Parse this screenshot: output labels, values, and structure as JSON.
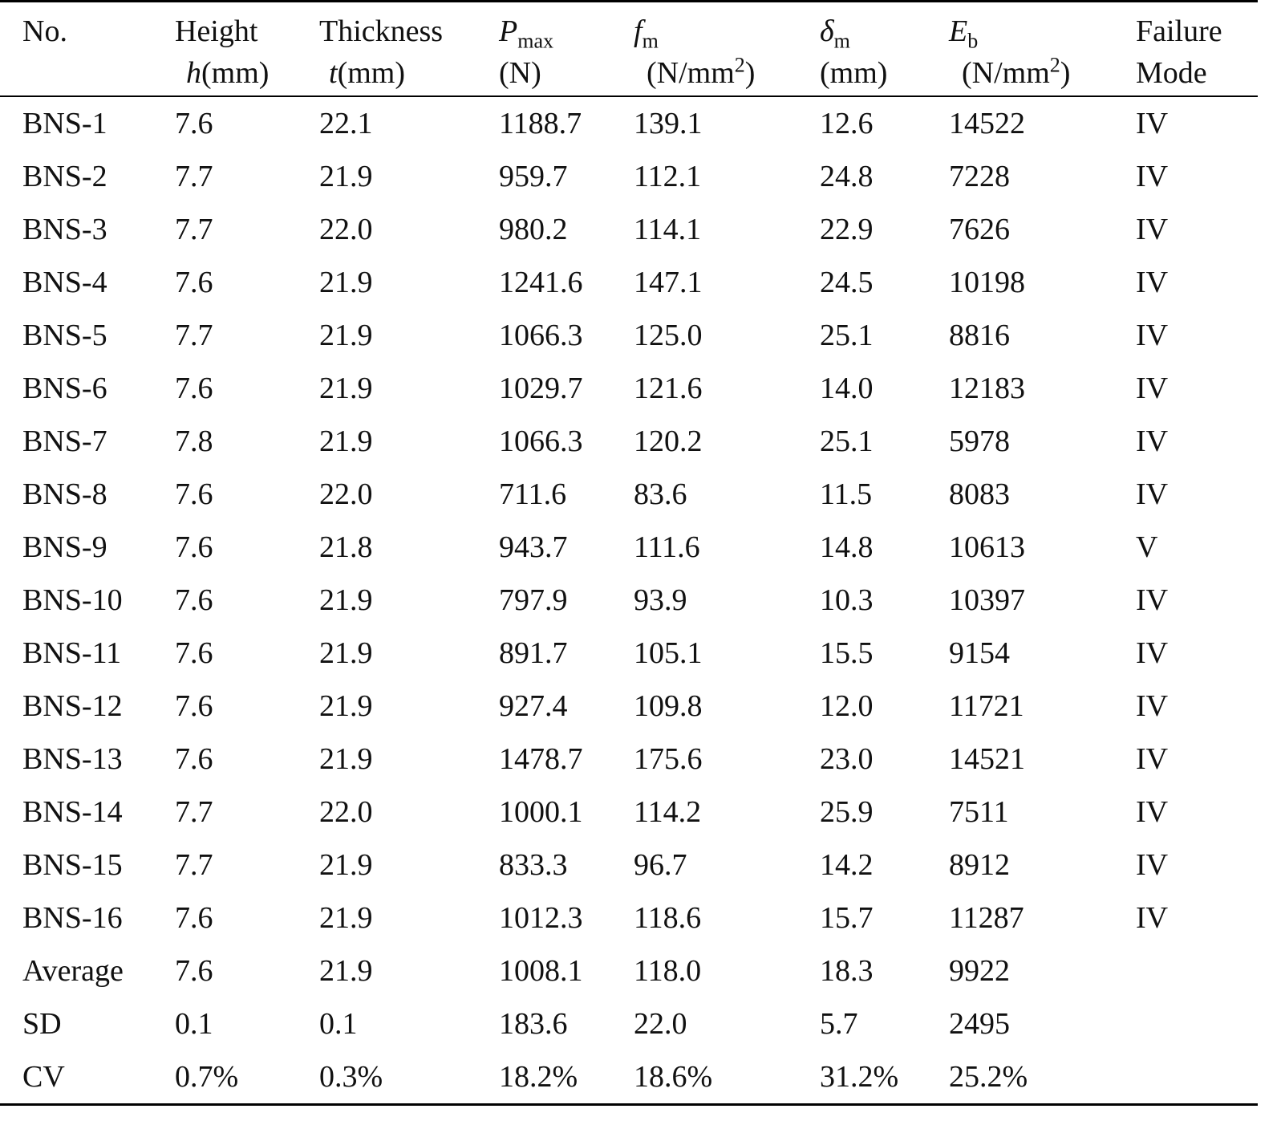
{
  "table": {
    "header": [
      [
        "No."
      ],
      [
        "Height",
        "h",
        "(mm)"
      ],
      [
        "Thickness",
        "t",
        "(mm)"
      ],
      [
        "P",
        "max",
        "(N)"
      ],
      [
        "f",
        "m",
        "(N/mm",
        "2",
        ")"
      ],
      [
        "δ",
        "m",
        "(mm)"
      ],
      [
        "E",
        "b",
        "(N/mm",
        "2",
        ")"
      ],
      [
        "Failure",
        "Mode"
      ]
    ],
    "rows": [
      [
        "BNS-1",
        "7.6",
        "22.1",
        "1188.7",
        "139.1",
        "12.6",
        "14522",
        "IV"
      ],
      [
        "BNS-2",
        "7.7",
        "21.9",
        "959.7",
        "112.1",
        "24.8",
        "7228",
        "IV"
      ],
      [
        "BNS-3",
        "7.7",
        "22.0",
        "980.2",
        "114.1",
        "22.9",
        "7626",
        "IV"
      ],
      [
        "BNS-4",
        "7.6",
        "21.9",
        "1241.6",
        "147.1",
        "24.5",
        "10198",
        "IV"
      ],
      [
        "BNS-5",
        "7.7",
        "21.9",
        "1066.3",
        "125.0",
        "25.1",
        "8816",
        "IV"
      ],
      [
        "BNS-6",
        "7.6",
        "21.9",
        "1029.7",
        "121.6",
        "14.0",
        "12183",
        "IV"
      ],
      [
        "BNS-7",
        "7.8",
        "21.9",
        "1066.3",
        "120.2",
        "25.1",
        "5978",
        "IV"
      ],
      [
        "BNS-8",
        "7.6",
        "22.0",
        "711.6",
        "83.6",
        "11.5",
        "8083",
        "IV"
      ],
      [
        "BNS-9",
        "7.6",
        "21.8",
        "943.7",
        "111.6",
        "14.8",
        "10613",
        "V"
      ],
      [
        "BNS-10",
        "7.6",
        "21.9",
        "797.9",
        "93.9",
        "10.3",
        "10397",
        "IV"
      ],
      [
        "BNS-11",
        "7.6",
        "21.9",
        "891.7",
        "105.1",
        "15.5",
        "9154",
        "IV"
      ],
      [
        "BNS-12",
        "7.6",
        "21.9",
        "927.4",
        "109.8",
        "12.0",
        "11721",
        "IV"
      ],
      [
        "BNS-13",
        "7.6",
        "21.9",
        "1478.7",
        "175.6",
        "23.0",
        "14521",
        "IV"
      ],
      [
        "BNS-14",
        "7.7",
        "22.0",
        "1000.1",
        "114.2",
        "25.9",
        "7511",
        "IV"
      ],
      [
        "BNS-15",
        "7.7",
        "21.9",
        "833.3",
        "96.7",
        "14.2",
        "8912",
        "IV"
      ],
      [
        "BNS-16",
        "7.6",
        "21.9",
        "1012.3",
        "118.6",
        "15.7",
        "11287",
        "IV"
      ],
      [
        "Average",
        "7.6",
        "21.9",
        "1008.1",
        "118.0",
        "18.3",
        "9922"
      ],
      [
        "SD",
        "0.1",
        "0.1",
        "183.6",
        "22.0",
        "5.7",
        "2495"
      ],
      [
        "CV",
        "0.7%",
        "0.3%",
        "18.2%",
        "18.6%",
        "31.2%",
        "25.2%"
      ]
    ]
  }
}
